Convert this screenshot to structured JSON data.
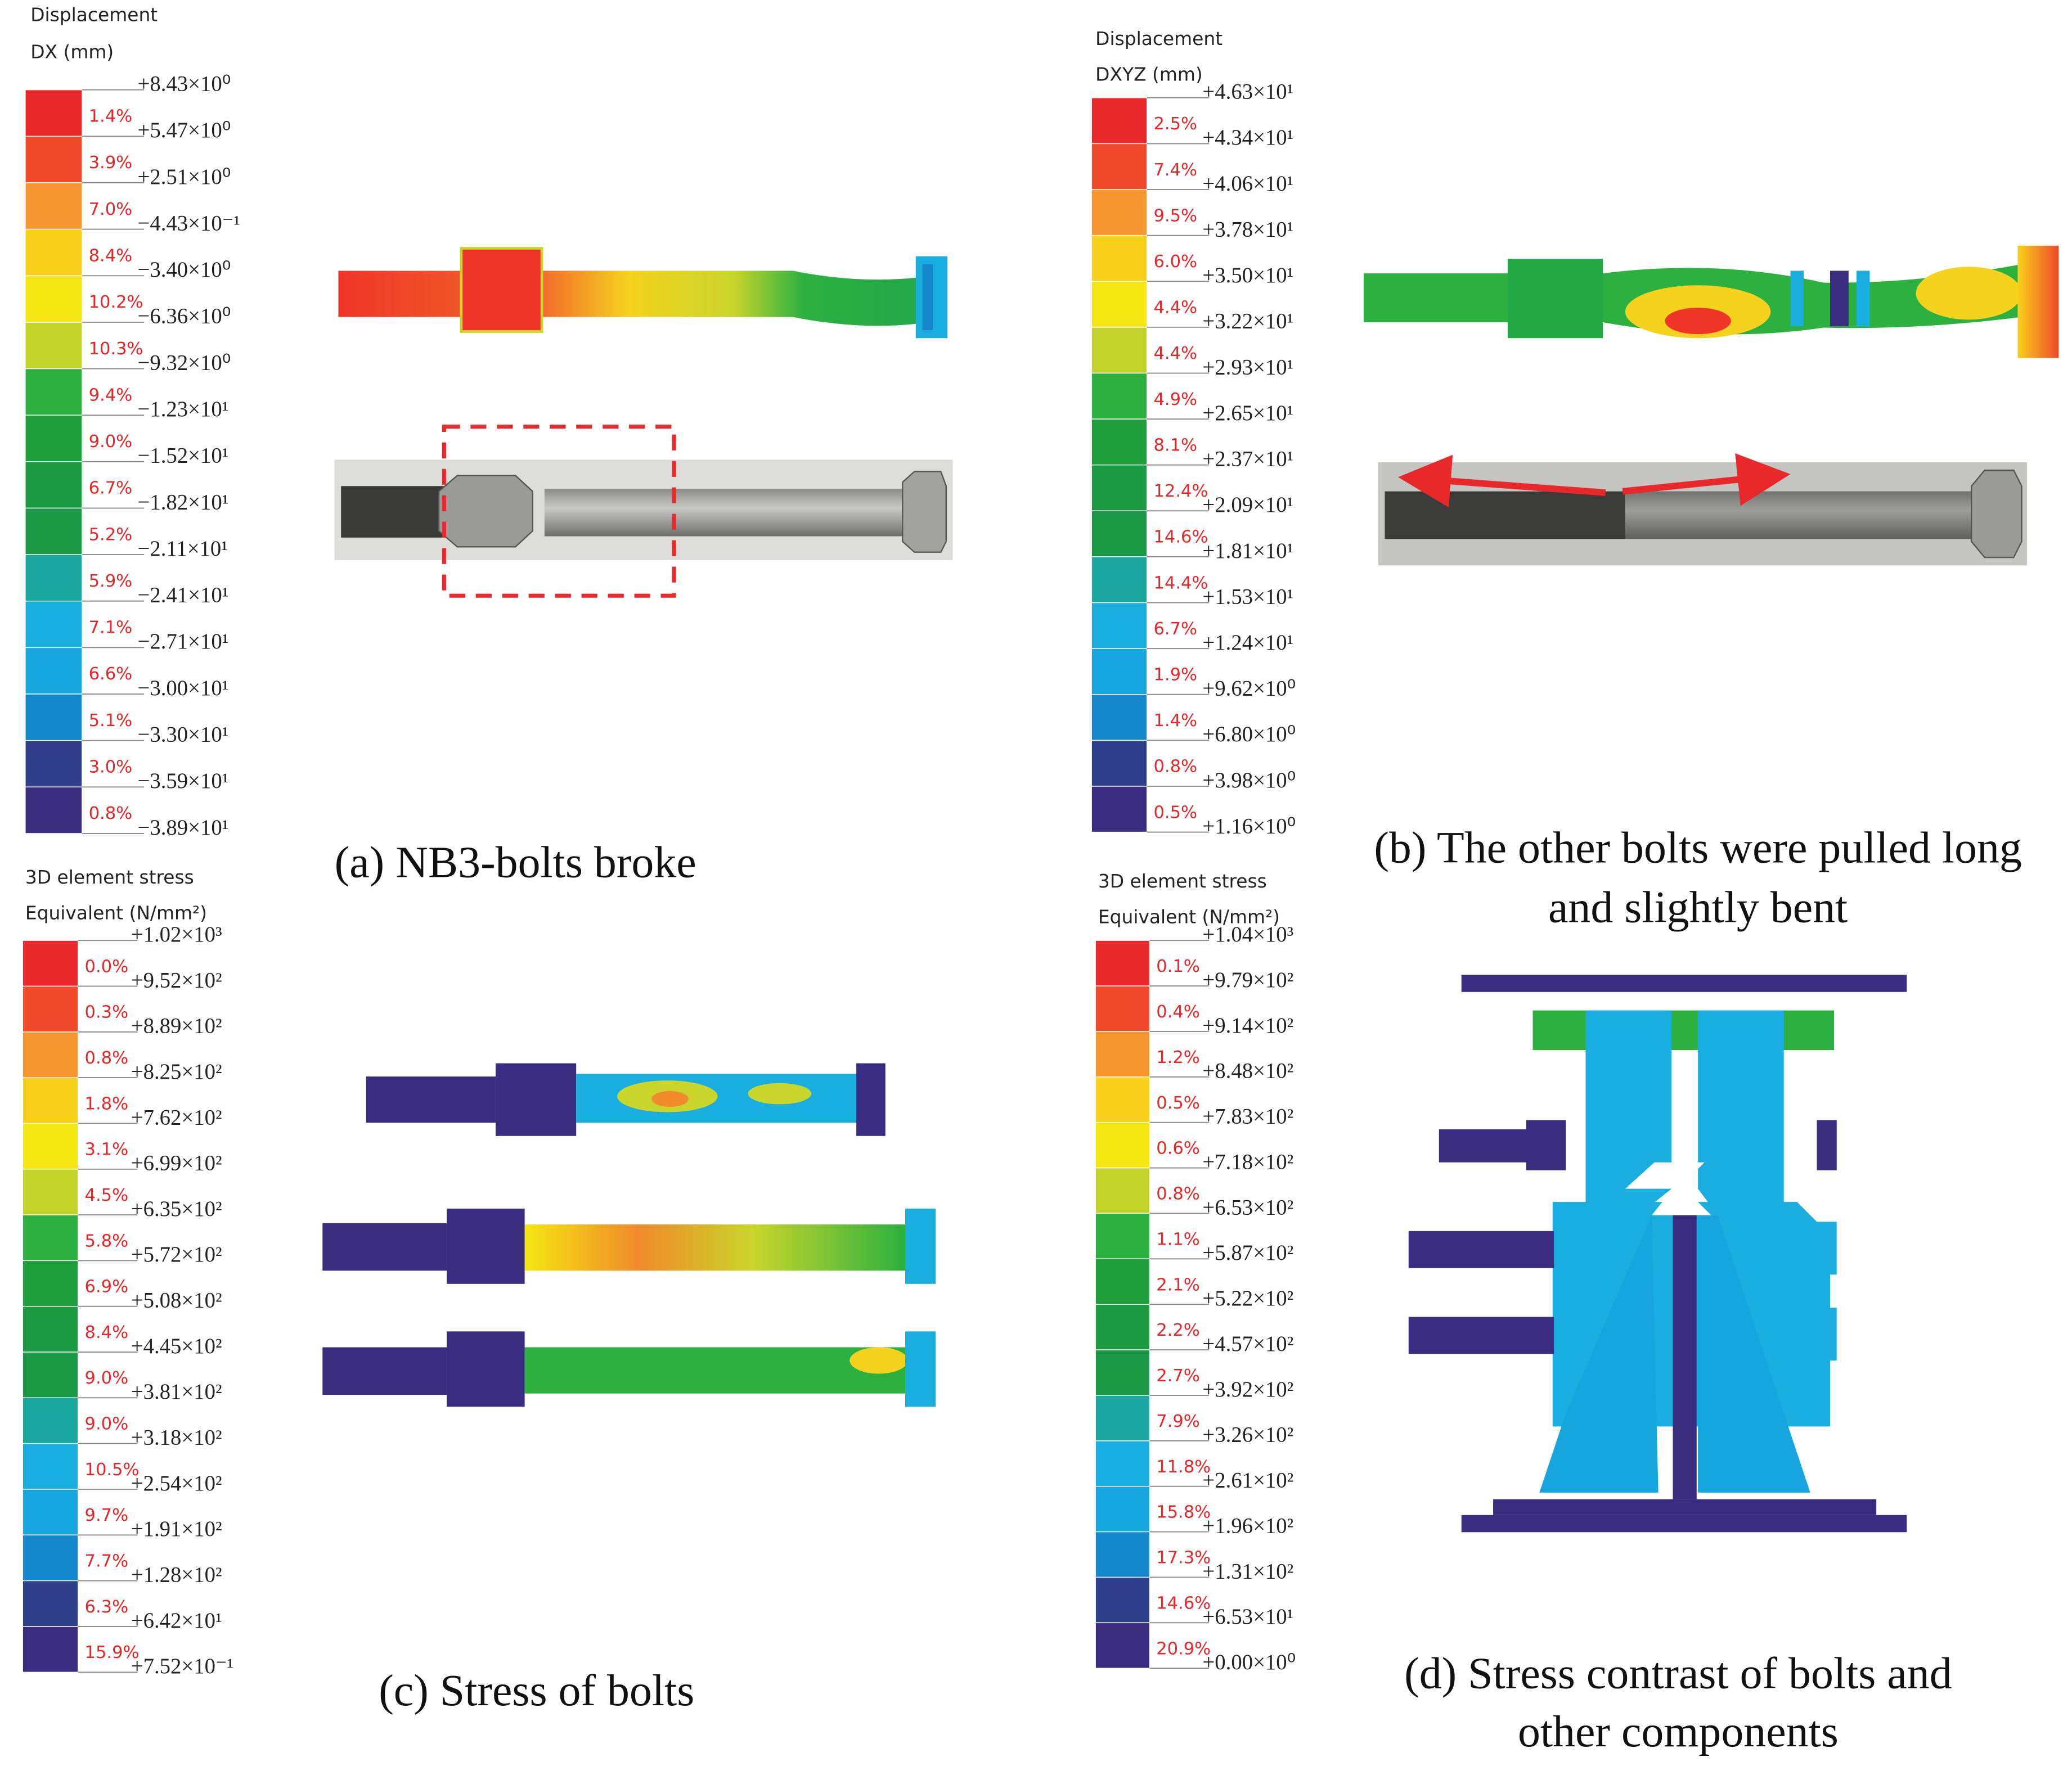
{
  "panels": [
    {
      "legend": {
        "title": "Displacement",
        "subtitle": "DX (mm)",
        "levels": [
          "+8.43×10⁰",
          "+5.47×10⁰",
          "+2.51×10⁰",
          "−4.43×10⁻¹",
          "−3.40×10⁰",
          "−6.36×10⁰",
          "−9.32×10⁰",
          "−1.23×10¹",
          "−1.52×10¹",
          "−1.82×10¹",
          "−2.11×10¹",
          "−2.41×10¹",
          "−2.71×10¹",
          "−3.00×10¹",
          "−3.30×10¹",
          "−3.59×10¹",
          "−3.89×10¹"
        ],
        "percents": [
          "1.4%",
          "3.9%",
          "7.0%",
          "8.4%",
          "10.2%",
          "10.3%",
          "9.4%",
          "9.0%",
          "6.7%",
          "5.2%",
          "5.9%",
          "7.1%",
          "6.6%",
          "5.1%",
          "3.0%",
          "0.8%"
        ]
      },
      "caption": [
        "(a) NB3-bolts broke"
      ]
    },
    {
      "legend": {
        "title": "Displacement",
        "subtitle": "DXYZ (mm)",
        "levels": [
          "+4.63×10¹",
          "+4.34×10¹",
          "+4.06×10¹",
          "+3.78×10¹",
          "+3.50×10¹",
          "+3.22×10¹",
          "+2.93×10¹",
          "+2.65×10¹",
          "+2.37×10¹",
          "+2.09×10¹",
          "+1.81×10¹",
          "+1.53×10¹",
          "+1.24×10¹",
          "+9.62×10⁰",
          "+6.80×10⁰",
          "+3.98×10⁰",
          "+1.16×10⁰"
        ],
        "percents": [
          "2.5%",
          "7.4%",
          "9.5%",
          "6.0%",
          "4.4%",
          "4.4%",
          "4.9%",
          "8.1%",
          "12.4%",
          "14.6%",
          "14.4%",
          "6.7%",
          "1.9%",
          "1.4%",
          "0.8%",
          "0.5%"
        ]
      },
      "caption": [
        "(b) The other bolts were pulled long",
        "and slightly bent"
      ]
    },
    {
      "legend": {
        "title": "3D element stress",
        "subtitle": "Equivalent (N/mm²)",
        "levels": [
          "+1.02×10³",
          "+9.52×10²",
          "+8.89×10²",
          "+8.25×10²",
          "+7.62×10²",
          "+6.99×10²",
          "+6.35×10²",
          "+5.72×10²",
          "+5.08×10²",
          "+4.45×10²",
          "+3.81×10²",
          "+3.18×10²",
          "+2.54×10²",
          "+1.91×10²",
          "+1.28×10²",
          "+6.42×10¹",
          "+7.52×10⁻¹"
        ],
        "percents": [
          "0.0%",
          "0.3%",
          "0.8%",
          "1.8%",
          "3.1%",
          "4.5%",
          "5.8%",
          "6.9%",
          "8.4%",
          "9.0%",
          "9.0%",
          "10.5%",
          "9.7%",
          "7.7%",
          "6.3%",
          "15.9%"
        ]
      },
      "caption": [
        "(c) Stress of bolts"
      ]
    },
    {
      "legend": {
        "title": "3D element stress",
        "subtitle": "Equivalent (N/mm²)",
        "levels": [
          "+1.04×10³",
          "+9.79×10²",
          "+9.14×10²",
          "+8.48×10²",
          "+7.83×10²",
          "+7.18×10²",
          "+6.53×10²",
          "+5.87×10²",
          "+5.22×10²",
          "+4.57×10²",
          "+3.92×10²",
          "+3.26×10²",
          "+2.61×10²",
          "+1.96×10²",
          "+1.31×10²",
          "+6.53×10¹",
          "+0.00×10⁰"
        ],
        "percents": [
          "0.1%",
          "0.4%",
          "1.2%",
          "0.5%",
          "0.6%",
          "0.8%",
          "1.1%",
          "2.1%",
          "2.2%",
          "2.7%",
          "7.9%",
          "11.8%",
          "15.8%",
          "17.3%",
          "14.6%",
          "20.9%"
        ]
      },
      "caption": [
        "(d) Stress contrast of bolts and",
        "other components"
      ]
    }
  ]
}
